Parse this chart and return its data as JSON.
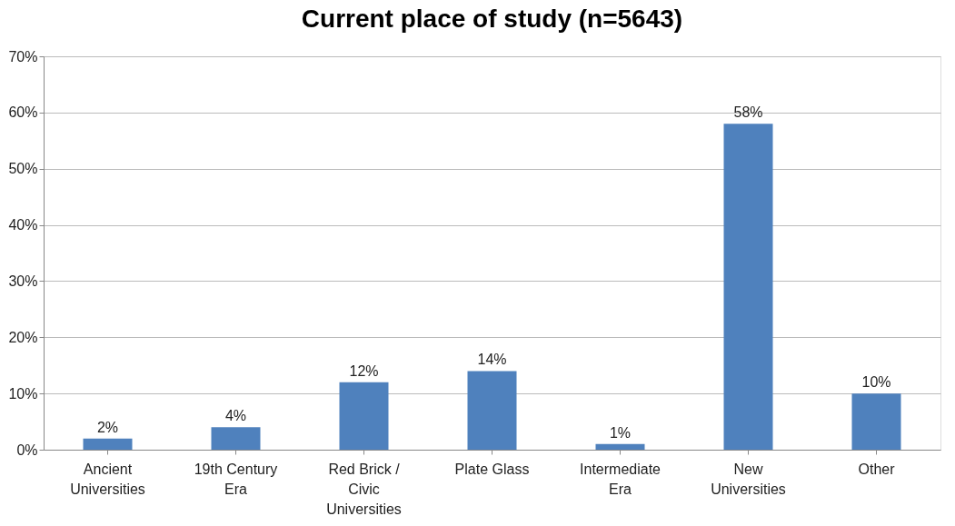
{
  "chart_data": {
    "type": "bar",
    "title": "Current place of study (n=5643)",
    "categories": [
      "Ancient Universities",
      "19th Century Era",
      "Red Brick / Civic Universities",
      "Plate Glass",
      "Intermediate Era",
      "New Universities",
      "Other"
    ],
    "values": [
      2,
      4,
      12,
      14,
      1,
      58,
      10
    ],
    "color": "#4f81bd",
    "value_labels": [
      "2%",
      "4%",
      "12%",
      "14%",
      "1%",
      "58%",
      "10%"
    ],
    "ylim": [
      0,
      70
    ],
    "yticks": [
      {
        "value": 0,
        "label": "0%"
      },
      {
        "value": 10,
        "label": "10%"
      },
      {
        "value": 20,
        "label": "20%"
      },
      {
        "value": 30,
        "label": "30%"
      },
      {
        "value": 40,
        "label": "40%"
      },
      {
        "value": 50,
        "label": "50%"
      },
      {
        "value": 60,
        "label": "60%"
      },
      {
        "value": 70,
        "label": "70%"
      }
    ],
    "grid": "y"
  }
}
